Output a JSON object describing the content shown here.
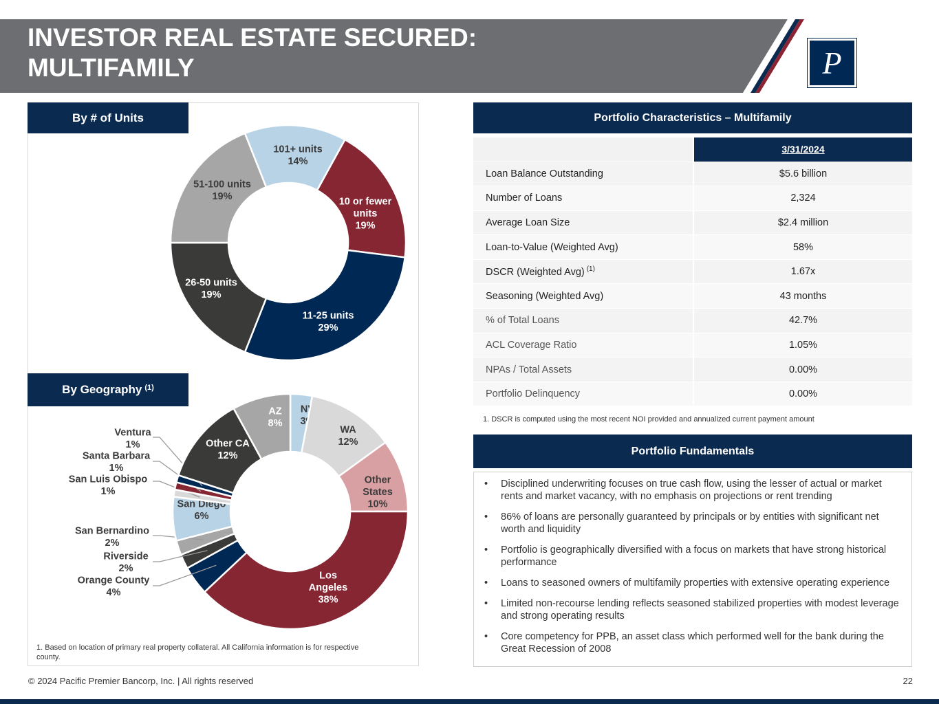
{
  "header": {
    "title_line1": "INVESTOR REAL ESTATE SECURED:",
    "title_line2": "MULTIFAMILY"
  },
  "logo": {
    "letter": "P"
  },
  "colors": {
    "navy": "#0b2a4f",
    "header_grey": "#6d6e71",
    "stripe_red": "#8b2332",
    "text": "#333333"
  },
  "units_section": {
    "title": "By # of Units"
  },
  "geo_section": {
    "title": "By Geography",
    "sup": "(1)"
  },
  "chart_data": [
    {
      "type": "pie",
      "title": "By # of Units",
      "series": [
        {
          "name": "10 or fewer units",
          "value": 19,
          "label_lines": [
            "10 or fewer",
            "units",
            "19%"
          ],
          "color": "#862633",
          "label_color": "#ffffff"
        },
        {
          "name": "11-25 units",
          "value": 29,
          "label_lines": [
            "11-25 units",
            "29%"
          ],
          "color": "#002855",
          "label_color": "#ffffff"
        },
        {
          "name": "26-50 units",
          "value": 19,
          "label_lines": [
            "26-50 units",
            "19%"
          ],
          "color": "#3a3a38",
          "label_color": "#ffffff"
        },
        {
          "name": "51-100 units",
          "value": 19,
          "label_lines": [
            "51-100 units",
            "19%"
          ],
          "color": "#a6a6a6",
          "label_color": "#3b3b3b"
        },
        {
          "name": "101+ units",
          "value": 14,
          "label_lines": [
            "101+ units",
            "14%"
          ],
          "color": "#b9d3e6",
          "label_color": "#3b3b3b"
        }
      ]
    },
    {
      "type": "pie",
      "title": "By Geography",
      "series": [
        {
          "name": "NV",
          "value": 3,
          "label_lines": [
            "NV",
            "3%"
          ],
          "color": "#b9d3e6",
          "label_color": "#3b3b3b"
        },
        {
          "name": "WA",
          "value": 12,
          "label_lines": [
            "WA",
            "12%"
          ],
          "color": "#d9d9d9",
          "label_color": "#3b3b3b"
        },
        {
          "name": "Other States",
          "value": 10,
          "label_lines": [
            "Other",
            "States",
            "10%"
          ],
          "color": "#d9a0a3",
          "label_color": "#3b3b3b"
        },
        {
          "name": "Los Angeles",
          "value": 38,
          "label_lines": [
            "Los",
            "Angeles",
            "38%"
          ],
          "color": "#862633",
          "label_color": "#ffffff"
        },
        {
          "name": "Orange County",
          "value": 4,
          "label_lines": [
            "Orange County",
            "4%"
          ],
          "color": "#002855",
          "label_color": "#3b3b3b",
          "outside": true
        },
        {
          "name": "Riverside",
          "value": 2,
          "label_lines": [
            "Riverside",
            "2%"
          ],
          "color": "#3a3a38",
          "label_color": "#3b3b3b",
          "outside": true
        },
        {
          "name": "San Bernardino",
          "value": 2,
          "label_lines": [
            "San Bernardino",
            "2%"
          ],
          "color": "#a6a6a6",
          "label_color": "#3b3b3b",
          "outside": true
        },
        {
          "name": "San Diego",
          "value": 6,
          "label_lines": [
            "San Diego",
            "6%"
          ],
          "color": "#b9d3e6",
          "label_color": "#3b3b3b"
        },
        {
          "name": "San Luis Obispo",
          "value": 1,
          "label_lines": [
            "San Luis Obispo",
            "1%"
          ],
          "color": "#d9d9d9",
          "label_color": "#3b3b3b",
          "outside": true
        },
        {
          "name": "Santa Barbara",
          "value": 1,
          "label_lines": [
            "Santa Barbara",
            "1%"
          ],
          "color": "#862633",
          "label_color": "#3b3b3b",
          "outside": true
        },
        {
          "name": "Ventura",
          "value": 1,
          "label_lines": [
            "Ventura",
            "1%"
          ],
          "color": "#002855",
          "label_color": "#3b3b3b",
          "outside": true
        },
        {
          "name": "Other CA",
          "value": 12,
          "label_lines": [
            "Other CA",
            "12%"
          ],
          "color": "#3a3a38",
          "label_color": "#ffffff"
        },
        {
          "name": "AZ",
          "value": 8,
          "label_lines": [
            "AZ",
            "8%"
          ],
          "color": "#a6a6a6",
          "label_color": "#ffffff"
        }
      ]
    }
  ],
  "left_footnote": "1. Based on location of primary real property collateral. All California information is for respective county.",
  "characteristics": {
    "title": "Portfolio Characteristics – Multifamily",
    "date_header": "3/31/2024",
    "rows": [
      {
        "label": "Loan Balance Outstanding",
        "value": "$5.6 billion"
      },
      {
        "label": "Number of Loans",
        "value": "2,324"
      },
      {
        "label": "Average Loan Size",
        "value": "$2.4 million"
      },
      {
        "label": "Loan-to-Value (Weighted Avg)",
        "value": "58%"
      },
      {
        "label": "DSCR (Weighted Avg)",
        "sup": "(1)",
        "value": "1.67x"
      },
      {
        "label": "Seasoning (Weighted Avg)",
        "value": "43 months"
      },
      {
        "label": "% of Total Loans",
        "value": "42.7%"
      },
      {
        "label": "ACL Coverage Ratio",
        "value": "1.05%"
      },
      {
        "label": "NPAs / Total Assets",
        "value": "0.00%"
      },
      {
        "label": "Portfolio Delinquency",
        "value": "0.00%"
      }
    ],
    "footnote": "1. DSCR is computed using the most recent NOI provided and annualized current payment amount"
  },
  "fundamentals": {
    "title": "Portfolio Fundamentals",
    "bullet": "•",
    "items": [
      "Disciplined underwriting focuses on true cash flow, using the lesser of actual or market rents and market vacancy, with no emphasis on projections or rent trending",
      "86% of loans are personally guaranteed by principals or by entities with significant net worth and liquidity",
      "Portfolio is geographically diversified with a focus on markets that have strong historical performance",
      "Loans to seasoned owners of multifamily properties with extensive operating experience",
      "Limited non-recourse lending reflects seasoned stabilized properties with modest leverage and strong operating results",
      "Core competency for PPB, an asset class which performed well for the bank during the Great Recession of 2008"
    ]
  },
  "footer": {
    "copyright": "© 2024 Pacific Premier Bancorp, Inc. | All rights reserved",
    "page": "22"
  }
}
